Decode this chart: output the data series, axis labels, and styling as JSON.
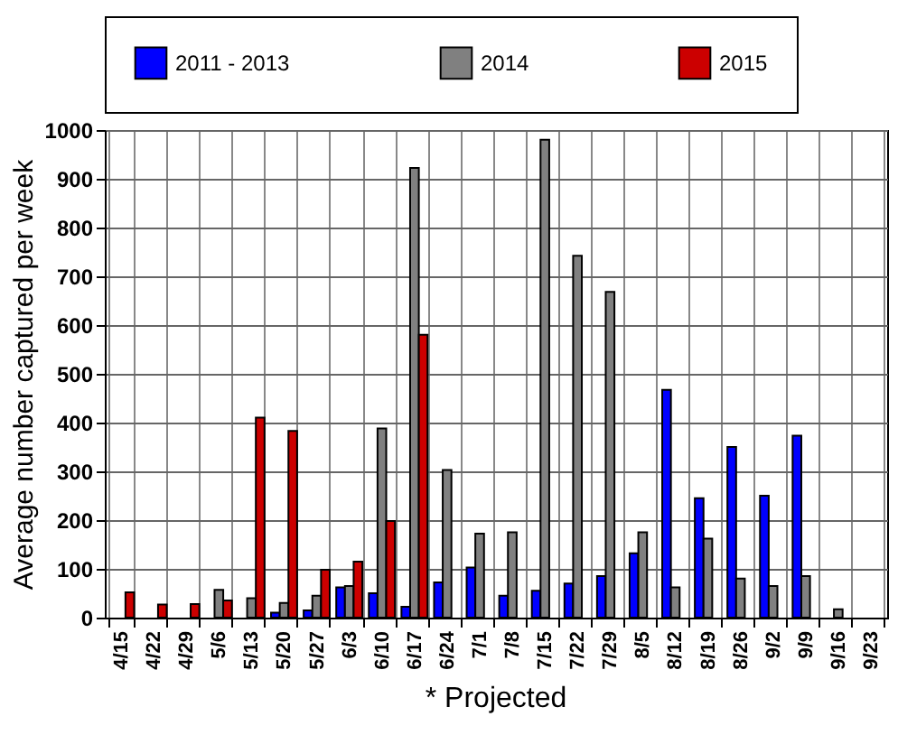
{
  "chart_data": {
    "type": "bar",
    "ylabel": "Average number captured per week",
    "categories": [
      "4/15",
      "4/22",
      "4/29",
      "5/6",
      "5/13",
      "5/20",
      "5/27",
      "6/3",
      "6/10",
      "6/17",
      "6/24",
      "7/1",
      "7/8",
      "7/15",
      "7/22",
      "7/29",
      "8/5",
      "8/12",
      "8/19",
      "8/26",
      "9/2",
      "9/9",
      "9/16",
      "9/23"
    ],
    "series": [
      {
        "name": "2011 - 2013",
        "color": "#0000ff",
        "values": [
          null,
          null,
          null,
          null,
          null,
          10,
          15,
          62,
          50,
          22,
          72,
          103,
          45,
          55,
          70,
          85,
          132,
          467,
          245,
          350,
          250,
          373,
          null,
          null
        ]
      },
      {
        "name": "2014",
        "color": "#808080",
        "values": [
          null,
          null,
          null,
          57,
          40,
          30,
          45,
          65,
          388,
          922,
          303,
          172,
          175,
          980,
          742,
          668,
          175,
          62,
          162,
          80,
          65,
          85,
          17,
          null
        ]
      },
      {
        "name": "2015",
        "color": "#cc0000",
        "values": [
          52,
          27,
          28,
          35,
          410,
          383,
          98,
          115,
          198,
          580,
          null,
          null,
          null,
          null,
          null,
          null,
          null,
          null,
          null,
          null,
          null,
          null,
          null,
          null
        ]
      }
    ],
    "ylim": [
      0,
      1000
    ],
    "yticks": [
      0,
      100,
      200,
      300,
      400,
      500,
      600,
      700,
      800,
      900,
      1000
    ],
    "grid": true,
    "legend": "top",
    "annotations": [
      "* Projected"
    ]
  }
}
